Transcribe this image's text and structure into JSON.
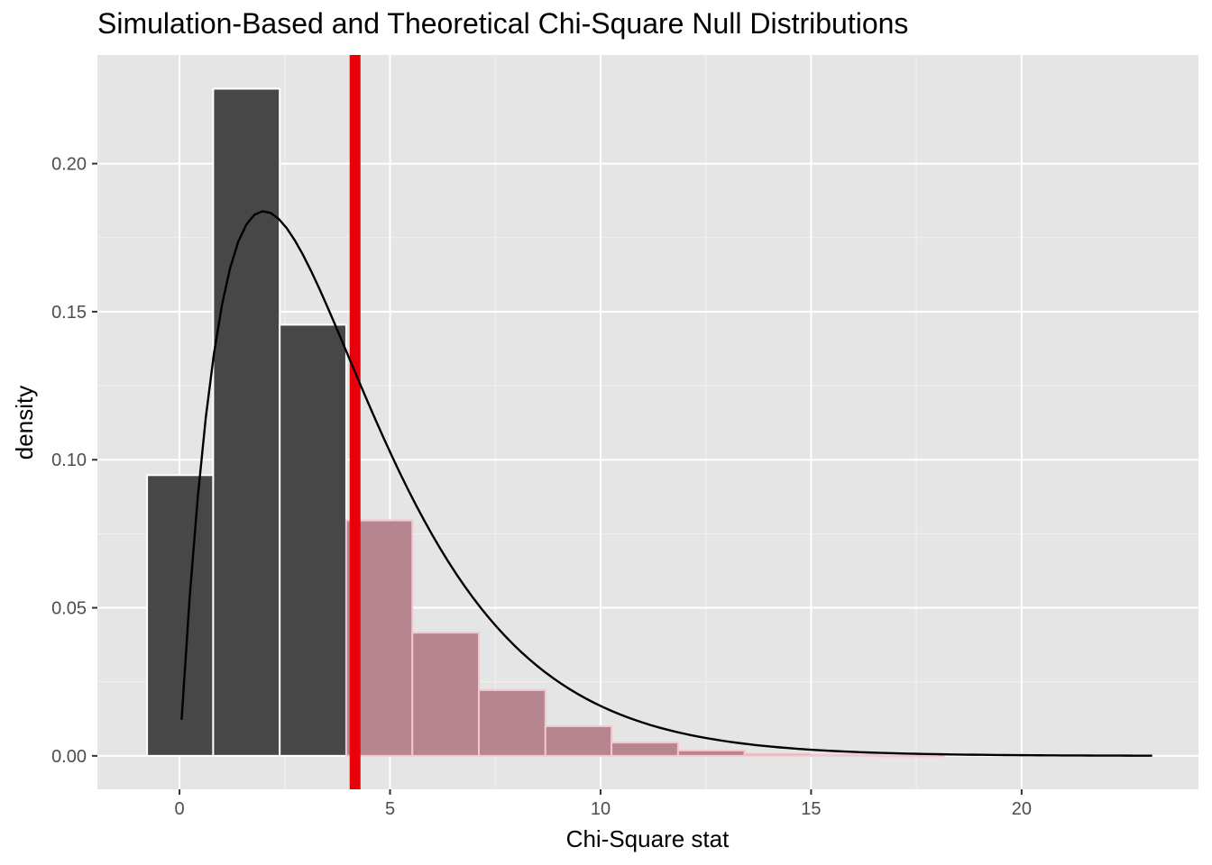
{
  "chart_data": {
    "type": "histogram",
    "title": "Simulation-Based and Theoretical Chi-Square Null Distributions",
    "xlabel": "Chi-Square stat",
    "ylabel": "density",
    "xlim": [
      -1.95,
      24.2
    ],
    "ylim": [
      -0.0113,
      0.2367
    ],
    "x_ticks": [
      0,
      5,
      10,
      15,
      20
    ],
    "x_tick_labels": [
      "0",
      "5",
      "10",
      "15",
      "20"
    ],
    "y_ticks": [
      0.0,
      0.05,
      0.1,
      0.15,
      0.2
    ],
    "y_tick_labels": [
      "0.00",
      "0.05",
      "0.10",
      "0.15",
      "0.20"
    ],
    "grid": true,
    "observed_stat": 4.17,
    "bins": [
      {
        "x0": -0.77,
        "x1": 0.8,
        "density": 0.0948,
        "shaded": false
      },
      {
        "x0": 0.8,
        "x1": 2.38,
        "density": 0.2253,
        "shaded": false
      },
      {
        "x0": 2.38,
        "x1": 3.96,
        "density": 0.1456,
        "shaded": false
      },
      {
        "x0": 3.96,
        "x1": 5.53,
        "density": 0.0795,
        "shaded": true
      },
      {
        "x0": 5.53,
        "x1": 7.11,
        "density": 0.0416,
        "shaded": true
      },
      {
        "x0": 7.11,
        "x1": 8.69,
        "density": 0.0222,
        "shaded": true
      },
      {
        "x0": 8.69,
        "x1": 10.26,
        "density": 0.01,
        "shaded": true
      },
      {
        "x0": 10.26,
        "x1": 11.84,
        "density": 0.0045,
        "shaded": true
      },
      {
        "x0": 11.84,
        "x1": 13.42,
        "density": 0.0018,
        "shaded": true
      },
      {
        "x0": 13.42,
        "x1": 14.99,
        "density": 0.0007,
        "shaded": true
      },
      {
        "x0": 14.99,
        "x1": 16.57,
        "density": 0.0003,
        "shaded": true
      },
      {
        "x0": 16.57,
        "x1": 18.15,
        "density": 0.0001,
        "shaded": true
      }
    ],
    "theoretical_curve": {
      "distribution": "chi-square",
      "df": 4,
      "x_range": [
        0.05,
        23.1
      ]
    },
    "colors": {
      "panel_background": "#e5e5e5",
      "grid_major": "#ffffff",
      "grid_minor": "#f2f2f2",
      "bar_fill": "#474747",
      "bar_fill_shaded": "#b7858f",
      "bar_outline": "#ffffff",
      "bar_outline_shaded": "#f6c6cf",
      "observed_line": "#e8000b",
      "curve": "#000000"
    }
  }
}
